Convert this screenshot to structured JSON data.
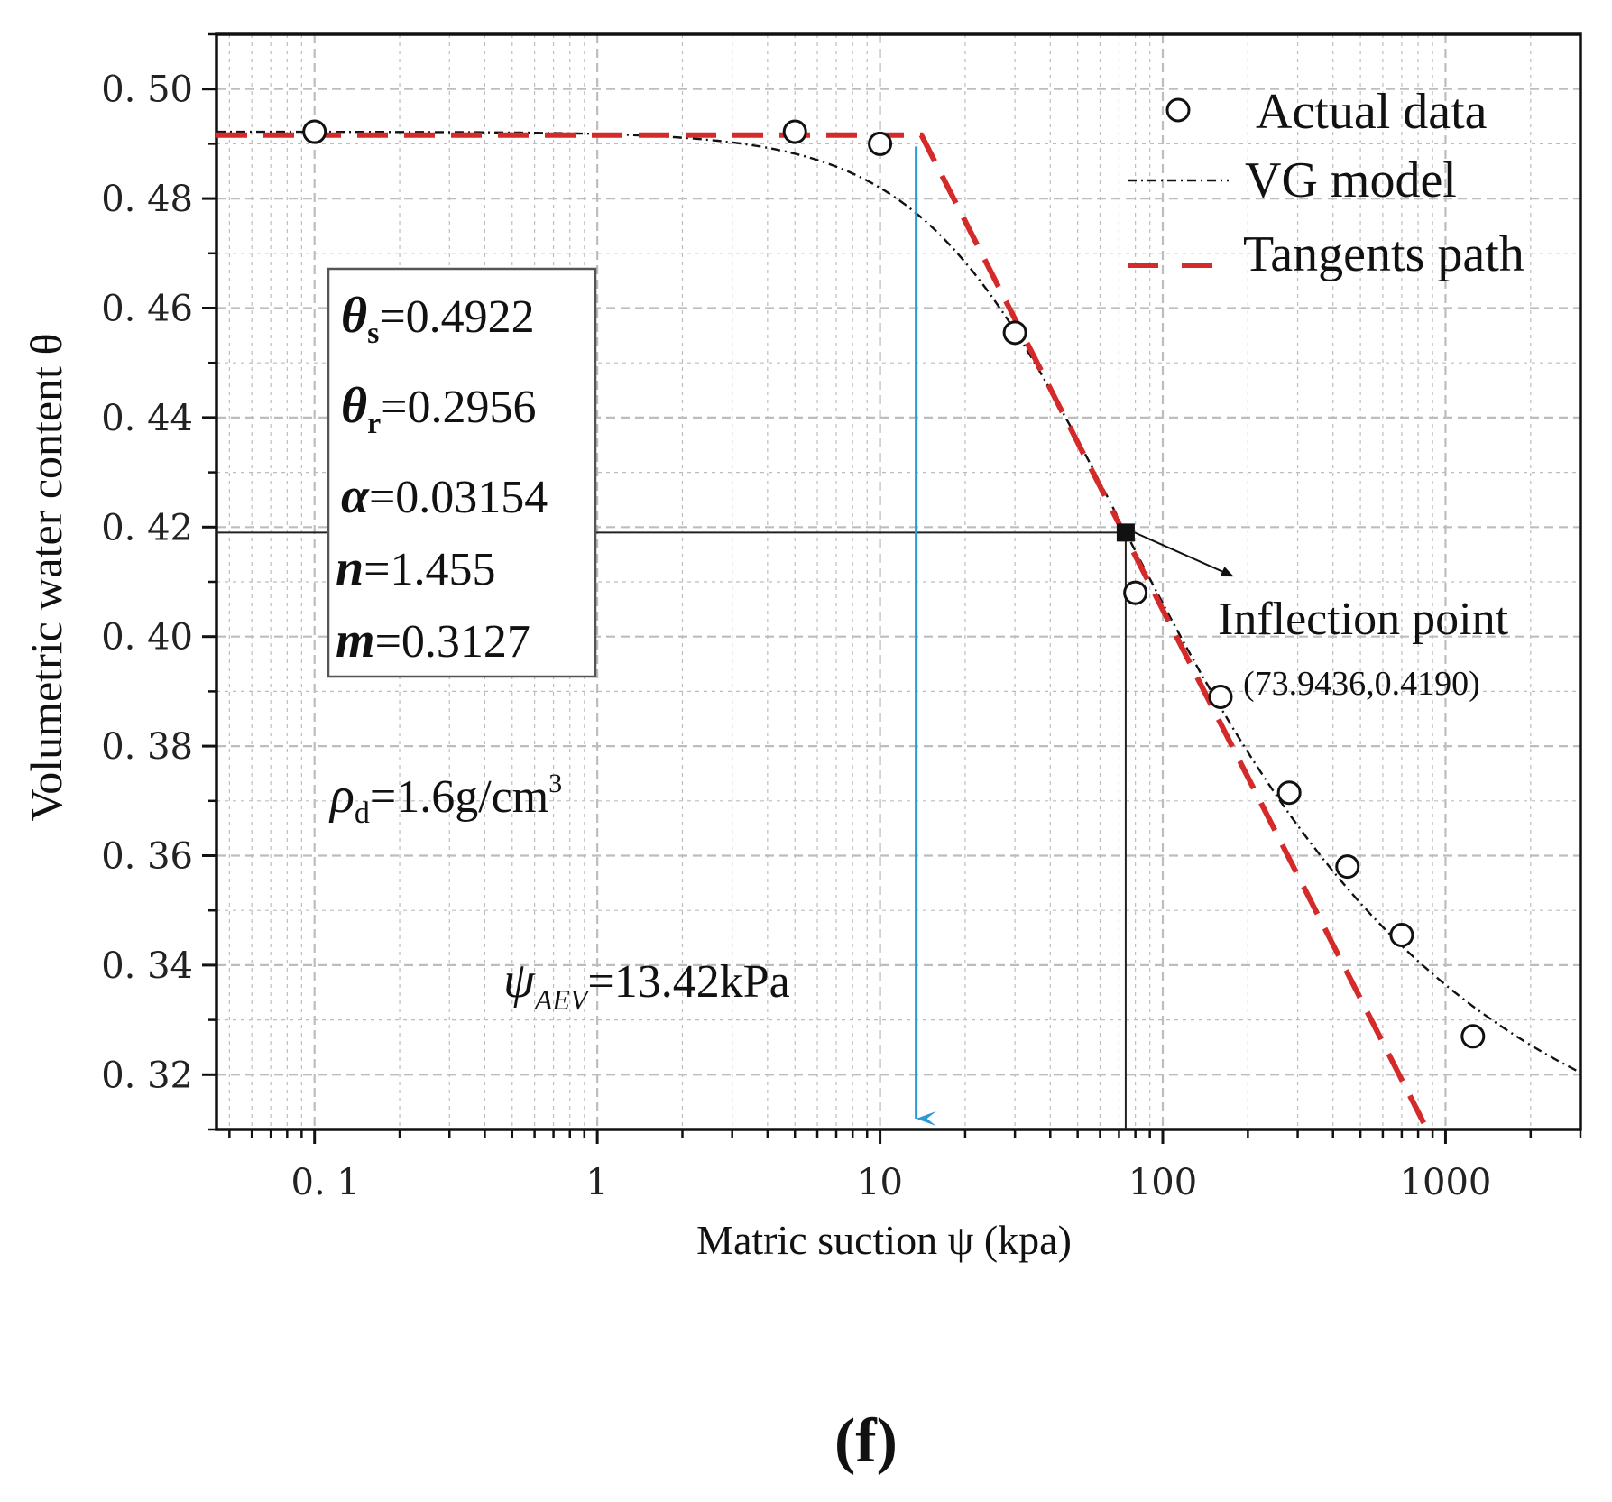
{
  "chart_data": {
    "type": "scatter",
    "xscale": "log",
    "xlim": [
      0.045,
      3000
    ],
    "ylim": [
      0.31,
      0.51
    ],
    "xlabel": "Matric suction ψ  (kpa)",
    "ylabel": "Volumetric water content θ",
    "x_ticks": [
      {
        "value": 0.1,
        "label": "0. 1"
      },
      {
        "value": 1,
        "label": "1"
      },
      {
        "value": 10,
        "label": "10"
      },
      {
        "value": 100,
        "label": "100"
      },
      {
        "value": 1000,
        "label": "1000"
      }
    ],
    "y_ticks": [
      {
        "value": 0.32,
        "label": "0. 32"
      },
      {
        "value": 0.34,
        "label": "0. 34"
      },
      {
        "value": 0.36,
        "label": "0. 36"
      },
      {
        "value": 0.38,
        "label": "0. 38"
      },
      {
        "value": 0.4,
        "label": "0. 40"
      },
      {
        "value": 0.42,
        "label": "0. 42"
      },
      {
        "value": 0.44,
        "label": "0. 44"
      },
      {
        "value": 0.46,
        "label": "0. 46"
      },
      {
        "value": 0.48,
        "label": "0. 48"
      },
      {
        "value": 0.5,
        "label": "0. 50"
      }
    ],
    "grid": true,
    "legend_position": "top-right",
    "series": [
      {
        "name": "Actual data",
        "kind": "marker",
        "points": [
          [
            0.1,
            0.4922
          ],
          [
            5,
            0.4922
          ],
          [
            10,
            0.49
          ],
          [
            30,
            0.4555
          ],
          [
            80,
            0.408
          ],
          [
            160,
            0.389
          ],
          [
            280,
            0.3715
          ],
          [
            450,
            0.358
          ],
          [
            700,
            0.3455
          ],
          [
            1250,
            0.327
          ]
        ]
      },
      {
        "name": "VG model",
        "kind": "dash-dot-line",
        "params": {
          "theta_s": 0.4922,
          "theta_r": 0.2956,
          "alpha": 0.03154,
          "n": 1.455,
          "m": 0.3127
        }
      },
      {
        "name": "Tangents path",
        "kind": "dashed-line",
        "points": [
          [
            0.045,
            0.4916
          ],
          [
            14,
            0.4916
          ],
          [
            860,
            0.31
          ]
        ]
      }
    ],
    "inflection_point": {
      "x": 73.9436,
      "y": 0.419,
      "label": "Inflection point",
      "coords": "(73.9436,0.4190)"
    },
    "aev": {
      "x": 13.42,
      "label_psi": "ψ",
      "label_sub": "AEV",
      "label_value": "=13.42kPa"
    },
    "params_box": [
      {
        "sym": "θ",
        "sub": "s",
        "value": "=0.4922"
      },
      {
        "sym": "θ",
        "sub": "r",
        "value": "=0.2956"
      },
      {
        "sym": "α",
        "sub": "",
        "value": "=0.03154"
      },
      {
        "sym": "n",
        "sub": "",
        "value": "=1.455"
      },
      {
        "sym": "m",
        "sub": "",
        "value": "=0.3127"
      }
    ],
    "density": {
      "sym": "ρ",
      "sub": "d",
      "value": "=1.6g/cm",
      "sup": "3"
    },
    "caption": "(f)",
    "colors": {
      "tangent": "#d42a2a",
      "aev_arrow": "#2a9bd6",
      "curve": "#111111",
      "grid": "#bdbdbd"
    }
  }
}
